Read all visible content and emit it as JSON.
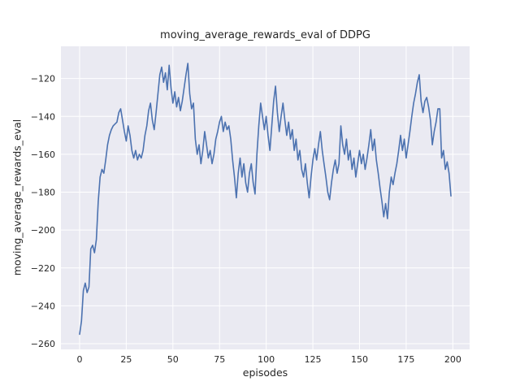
{
  "figure": {
    "title": "moving_average_rewards_eval of DDPG",
    "xlabel": "episodes",
    "ylabel": "moving_average_rewards_eval"
  },
  "chart_data": {
    "type": "line",
    "title": "moving_average_rewards_eval of DDPG",
    "xlabel": "episodes",
    "ylabel": "moving_average_rewards_eval",
    "legend": "none",
    "grid": true,
    "xlim": [
      -10,
      209
    ],
    "ylim": [
      -263,
      -103
    ],
    "x_ticks": [
      0,
      25,
      50,
      75,
      100,
      125,
      150,
      175,
      200
    ],
    "y_ticks": [
      -260,
      -240,
      -220,
      -200,
      -180,
      -160,
      -140,
      -120
    ],
    "x_start": 0,
    "x_step": 1,
    "values": [
      -255,
      -248,
      -232,
      -228,
      -233,
      -230,
      -210,
      -208,
      -212,
      -205,
      -185,
      -172,
      -168,
      -170,
      -163,
      -155,
      -150,
      -147,
      -145,
      -144,
      -143,
      -138,
      -136,
      -142,
      -148,
      -153,
      -145,
      -150,
      -158,
      -162,
      -158,
      -163,
      -160,
      -162,
      -158,
      -150,
      -145,
      -137,
      -133,
      -142,
      -147,
      -138,
      -128,
      -118,
      -114,
      -122,
      -117,
      -126,
      -113,
      -125,
      -133,
      -127,
      -135,
      -130,
      -137,
      -132,
      -125,
      -118,
      -112,
      -128,
      -136,
      -133,
      -152,
      -160,
      -155,
      -165,
      -158,
      -148,
      -155,
      -162,
      -158,
      -165,
      -160,
      -152,
      -148,
      -143,
      -140,
      -148,
      -143,
      -147,
      -145,
      -152,
      -163,
      -172,
      -183,
      -170,
      -162,
      -172,
      -165,
      -175,
      -180,
      -170,
      -165,
      -175,
      -181,
      -160,
      -145,
      -133,
      -140,
      -147,
      -140,
      -150,
      -158,
      -145,
      -132,
      -124,
      -138,
      -148,
      -140,
      -133,
      -142,
      -150,
      -143,
      -152,
      -147,
      -158,
      -152,
      -163,
      -158,
      -168,
      -172,
      -165,
      -175,
      -183,
      -172,
      -163,
      -157,
      -163,
      -155,
      -148,
      -158,
      -165,
      -172,
      -180,
      -184,
      -175,
      -168,
      -163,
      -170,
      -165,
      -145,
      -155,
      -160,
      -152,
      -163,
      -158,
      -168,
      -162,
      -172,
      -165,
      -158,
      -165,
      -160,
      -168,
      -162,
      -155,
      -147,
      -158,
      -152,
      -163,
      -170,
      -178,
      -185,
      -193,
      -186,
      -194,
      -180,
      -172,
      -176,
      -170,
      -165,
      -158,
      -150,
      -158,
      -152,
      -162,
      -155,
      -148,
      -140,
      -133,
      -128,
      -122,
      -118,
      -132,
      -138,
      -132,
      -130,
      -135,
      -142,
      -155,
      -148,
      -143,
      -136,
      -136,
      -162,
      -158,
      -168,
      -164,
      -170,
      -182
    ],
    "line_color": "#4c72b0",
    "background_color": "#eaeaf2",
    "grid_color": "#ffffff",
    "text_color": "#262626"
  }
}
